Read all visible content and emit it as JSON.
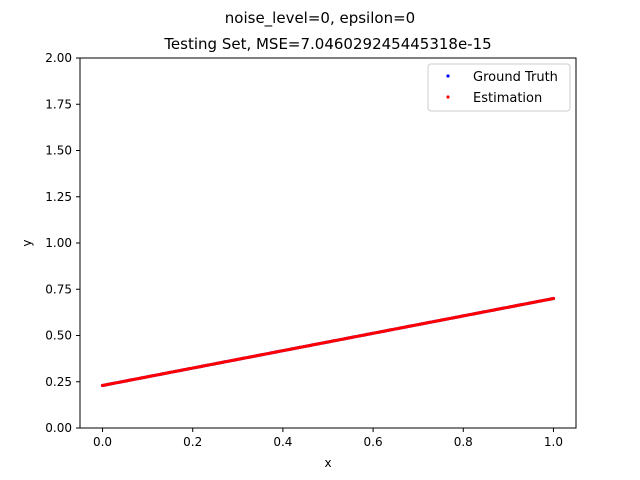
{
  "chart_data": {
    "type": "scatter",
    "suptitle": "noise_level=0, epsilon=0",
    "title": "Testing Set, MSE=7.046029245445318e-15",
    "xlabel": "x",
    "ylabel": "y",
    "xlim": [
      -0.05,
      1.05
    ],
    "ylim": [
      0.0,
      2.0
    ],
    "xticks": [
      0.0,
      0.2,
      0.4,
      0.6,
      0.8,
      1.0
    ],
    "xtick_labels": [
      "0.0",
      "0.2",
      "0.4",
      "0.6",
      "0.8",
      "1.0"
    ],
    "yticks": [
      0.0,
      0.25,
      0.5,
      0.75,
      1.0,
      1.25,
      1.5,
      1.75,
      2.0
    ],
    "ytick_labels": [
      "0.00",
      "0.25",
      "0.50",
      "0.75",
      "1.00",
      "1.25",
      "1.50",
      "1.75",
      "2.00"
    ],
    "grid": false,
    "legend_position": "top-right",
    "series": [
      {
        "name": "Ground Truth",
        "color": "#0000ff",
        "x": [
          0.0,
          0.05,
          0.1,
          0.15,
          0.2,
          0.25,
          0.3,
          0.35,
          0.4,
          0.45,
          0.5,
          0.55,
          0.6,
          0.65,
          0.7,
          0.75,
          0.8,
          0.85,
          0.9,
          0.95,
          1.0
        ],
        "y": [
          0.23,
          0.2535,
          0.277,
          0.3005,
          0.324,
          0.3475,
          0.371,
          0.3945,
          0.418,
          0.4415,
          0.465,
          0.4885,
          0.512,
          0.5355,
          0.559,
          0.5825,
          0.606,
          0.6295,
          0.653,
          0.6765,
          0.7
        ]
      },
      {
        "name": "Estimation",
        "color": "#ff0000",
        "x": [
          0.0,
          0.05,
          0.1,
          0.15,
          0.2,
          0.25,
          0.3,
          0.35,
          0.4,
          0.45,
          0.5,
          0.55,
          0.6,
          0.65,
          0.7,
          0.75,
          0.8,
          0.85,
          0.9,
          0.95,
          1.0
        ],
        "y": [
          0.23,
          0.2535,
          0.277,
          0.3005,
          0.324,
          0.3475,
          0.371,
          0.3945,
          0.418,
          0.4415,
          0.465,
          0.4885,
          0.512,
          0.5355,
          0.559,
          0.5825,
          0.606,
          0.6295,
          0.653,
          0.6765,
          0.7
        ]
      }
    ]
  }
}
